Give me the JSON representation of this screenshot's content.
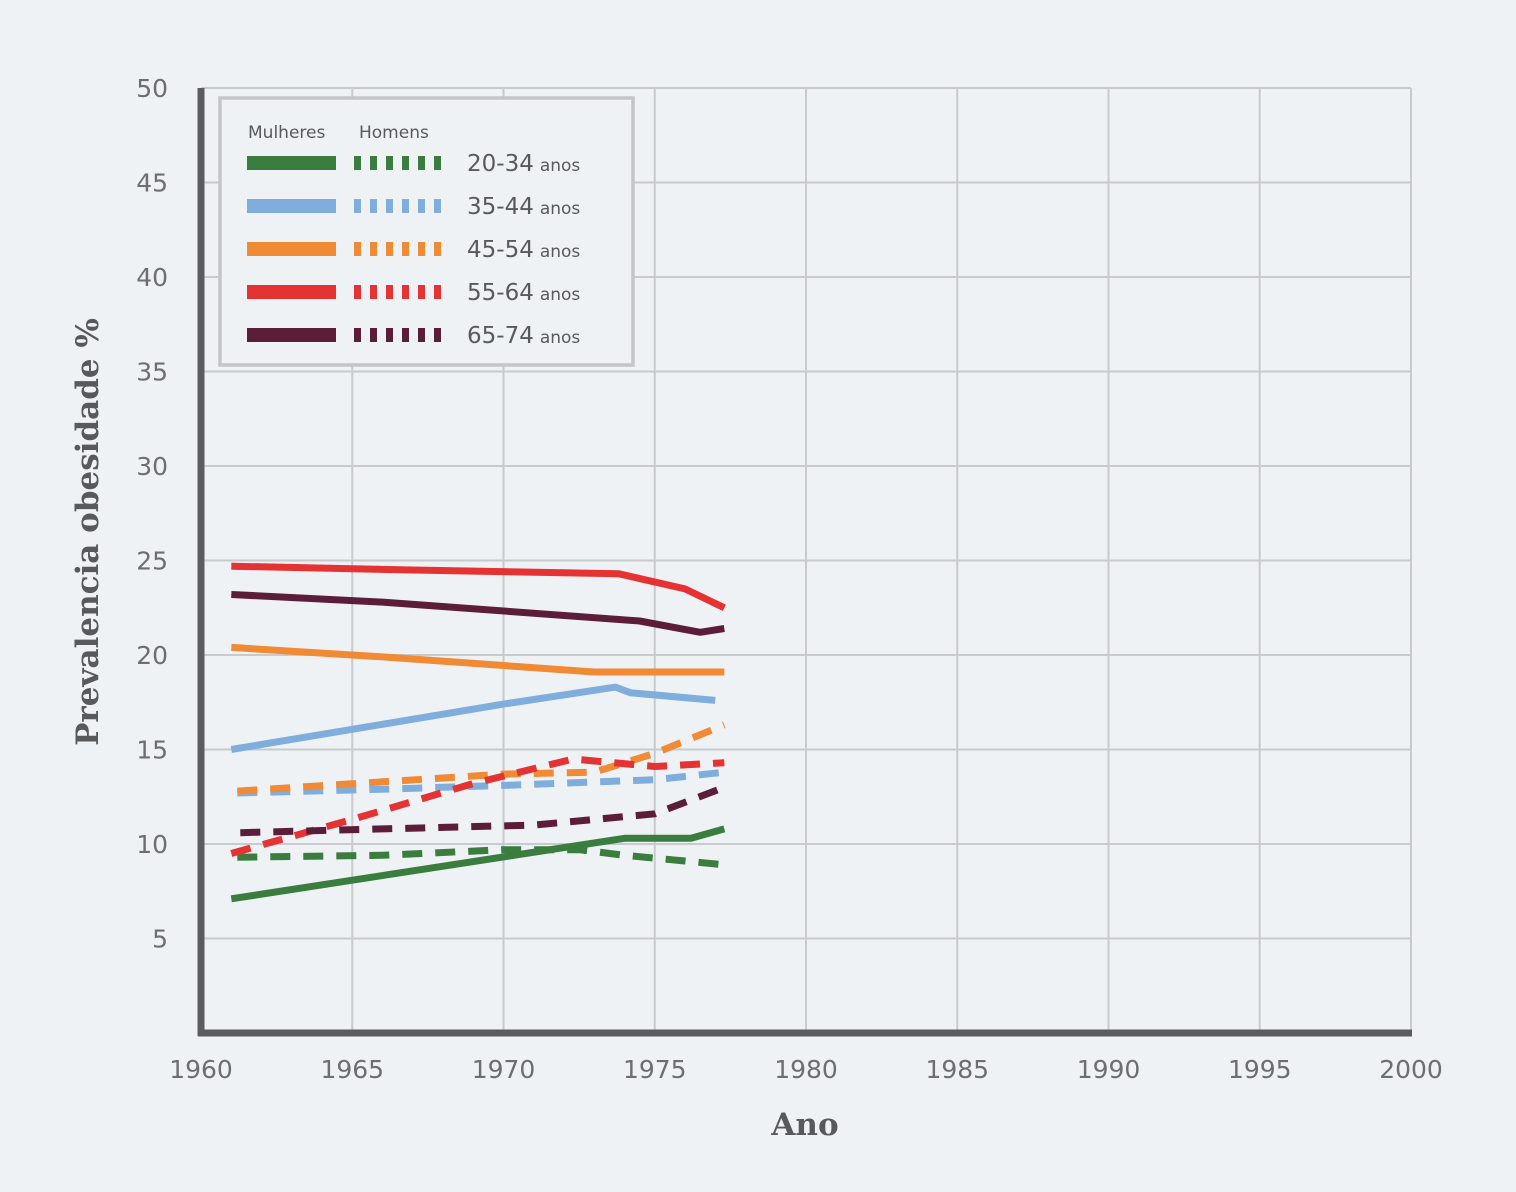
{
  "chart_data": {
    "type": "line",
    "xlabel": "Ano",
    "ylabel": "Prevalencia obesidade %",
    "xlim": [
      1960,
      2000
    ],
    "ylim": [
      0,
      50
    ],
    "x_ticks": [
      "1960",
      "1965",
      "1970",
      "1975",
      "1980",
      "1985",
      "1990",
      "1995",
      "2000"
    ],
    "y_ticks": [
      "5",
      "10",
      "15",
      "20",
      "25",
      "30",
      "35",
      "40",
      "45",
      "50"
    ],
    "grid": true,
    "legend": {
      "placement": "top-left",
      "header_women": "Mulheres",
      "header_men": "Homens",
      "unit": "anos",
      "groups": [
        "20-34",
        "35-44",
        "45-54",
        "55-64",
        "65-74"
      ]
    },
    "series": [
      {
        "group": "20-34",
        "sex": "Mulheres",
        "style": "solid",
        "color": "#3a7d3e",
        "points": [
          [
            1961,
            7.1
          ],
          [
            1974,
            10.3
          ],
          [
            1976.2,
            10.3
          ],
          [
            1977.3,
            10.8
          ]
        ]
      },
      {
        "group": "20-34",
        "sex": "Homens",
        "style": "dashed",
        "color": "#3a7d3e",
        "points": [
          [
            1961.2,
            9.3
          ],
          [
            1966,
            9.4
          ],
          [
            1970,
            9.7
          ],
          [
            1972.5,
            9.7
          ],
          [
            1974,
            9.4
          ],
          [
            1976,
            9.1
          ],
          [
            1977.3,
            8.9
          ]
        ]
      },
      {
        "group": "35-44",
        "sex": "Mulheres",
        "style": "solid",
        "color": "#7faedc",
        "points": [
          [
            1961,
            15.0
          ],
          [
            1970,
            17.4
          ],
          [
            1973.7,
            18.3
          ],
          [
            1974.2,
            18.0
          ],
          [
            1977,
            17.6
          ]
        ]
      },
      {
        "group": "35-44",
        "sex": "Homens",
        "style": "dashed",
        "color": "#7faedc",
        "points": [
          [
            1961.2,
            12.7
          ],
          [
            1966,
            12.9
          ],
          [
            1970,
            13.1
          ],
          [
            1975,
            13.4
          ],
          [
            1977.3,
            13.8
          ]
        ]
      },
      {
        "group": "45-54",
        "sex": "Mulheres",
        "style": "solid",
        "color": "#f18a35",
        "points": [
          [
            1961,
            20.4
          ],
          [
            1966,
            19.9
          ],
          [
            1973,
            19.1
          ],
          [
            1977.3,
            19.1
          ]
        ]
      },
      {
        "group": "45-54",
        "sex": "Homens",
        "style": "dashed",
        "color": "#f18a35",
        "points": [
          [
            1961.2,
            12.8
          ],
          [
            1970,
            13.7
          ],
          [
            1973,
            13.8
          ],
          [
            1975,
            14.8
          ],
          [
            1977.3,
            16.3
          ]
        ]
      },
      {
        "group": "55-64",
        "sex": "Mulheres",
        "style": "solid",
        "color": "#e53232",
        "points": [
          [
            1961,
            24.7
          ],
          [
            1967,
            24.5
          ],
          [
            1973.8,
            24.3
          ],
          [
            1976,
            23.5
          ],
          [
            1977.3,
            22.5
          ]
        ]
      },
      {
        "group": "55-64",
        "sex": "Homens",
        "style": "dashed",
        "color": "#e53232",
        "points": [
          [
            1961,
            9.5
          ],
          [
            1965,
            11.3
          ],
          [
            1969,
            13.2
          ],
          [
            1972.3,
            14.5
          ],
          [
            1975,
            14.1
          ],
          [
            1977.3,
            14.3
          ]
        ]
      },
      {
        "group": "65-74",
        "sex": "Mulheres",
        "style": "solid",
        "color": "#5c1d3a",
        "points": [
          [
            1961,
            23.2
          ],
          [
            1966,
            22.8
          ],
          [
            1974.5,
            21.8
          ],
          [
            1976.5,
            21.2
          ],
          [
            1977.3,
            21.4
          ]
        ]
      },
      {
        "group": "65-74",
        "sex": "Homens",
        "style": "dashed",
        "color": "#5c1d3a",
        "points": [
          [
            1961.3,
            10.6
          ],
          [
            1966,
            10.8
          ],
          [
            1971,
            11.0
          ],
          [
            1975,
            11.6
          ],
          [
            1977.3,
            13.0
          ]
        ]
      }
    ]
  }
}
